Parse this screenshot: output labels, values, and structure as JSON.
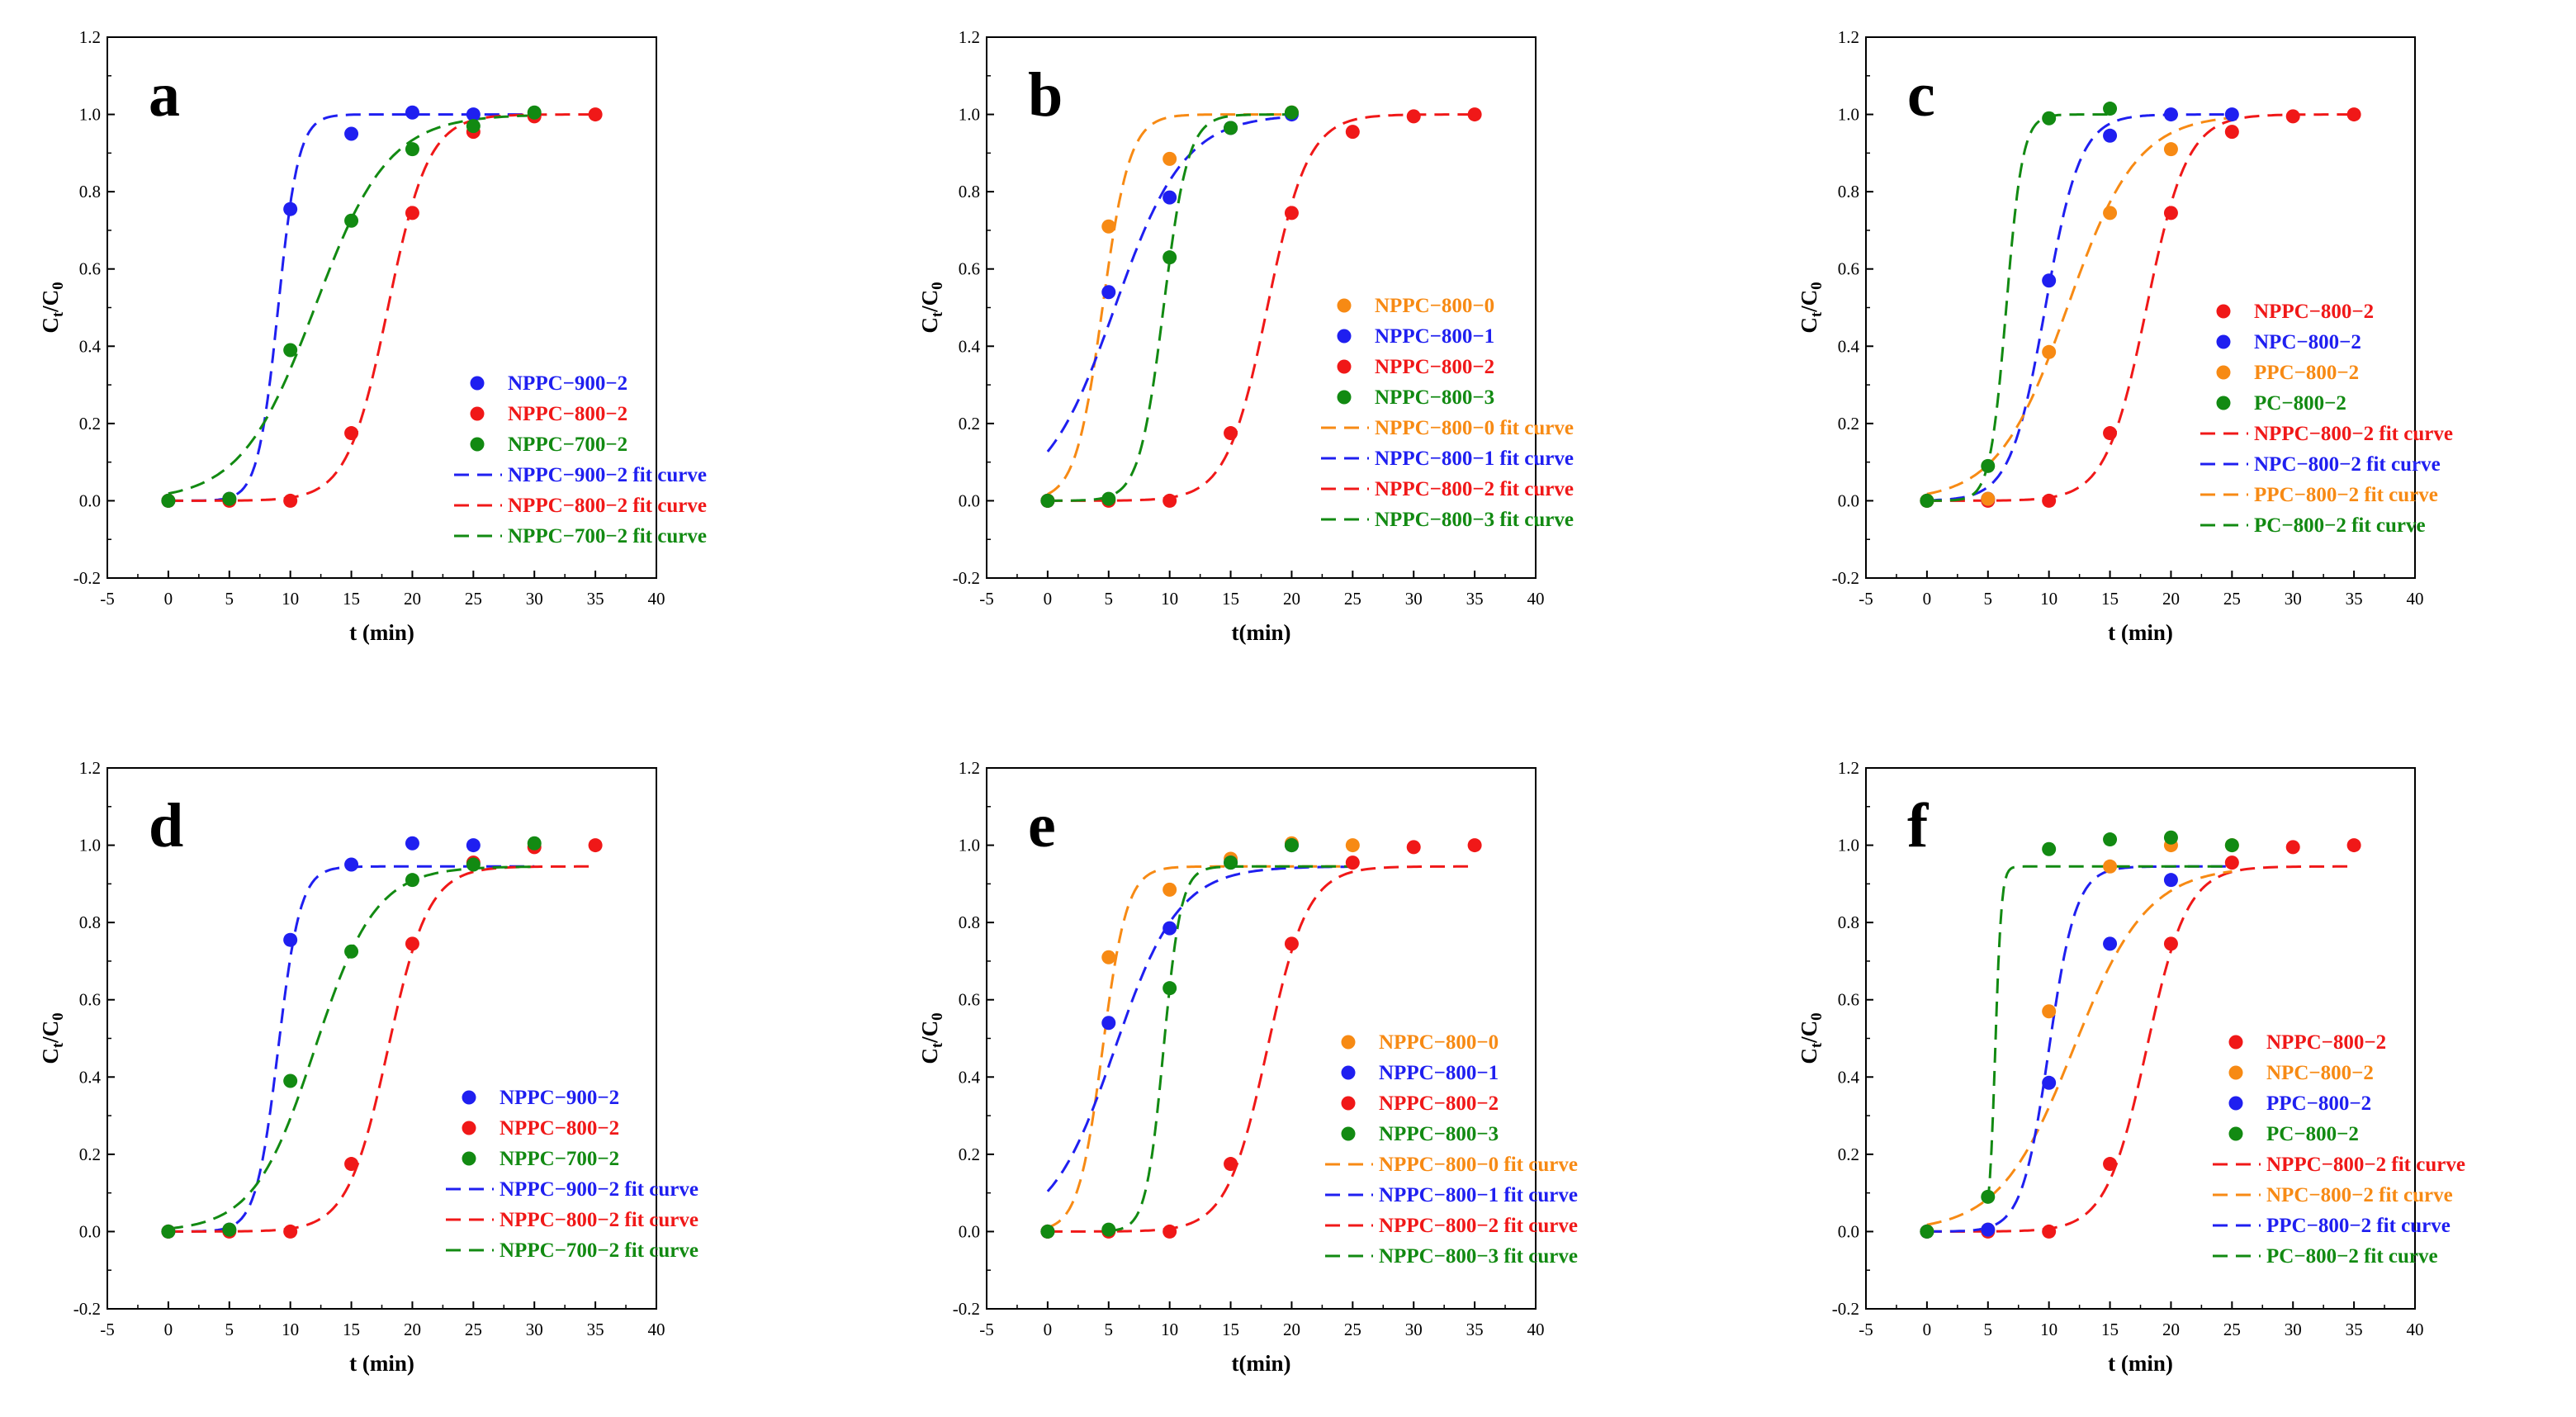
{
  "colors": {
    "blue": "#1f1ff0",
    "red": "#f01818",
    "green": "#128a12",
    "orange": "#f78a14"
  },
  "chart_data": [
    {
      "type": "scatter",
      "panel_label": "a",
      "xlabel": "t (min)",
      "ylabel_main": "C",
      "ylabel_sub1": "t",
      "ylabel_slash": "/C",
      "ylabel_sub2": "0",
      "xlim": [
        -5,
        40
      ],
      "ylim": [
        -0.2,
        1.2
      ],
      "xticks": [
        "-5",
        "0",
        "5",
        "10",
        "15",
        "20",
        "25",
        "30",
        "35",
        "40"
      ],
      "yticks": [
        "-0.2",
        "0.0",
        "0.2",
        "0.4",
        "0.6",
        "0.8",
        "1.0",
        "1.2"
      ],
      "series": [
        {
          "name": "NPPC−900−2",
          "color": "blue",
          "x": [
            0,
            5,
            10,
            15,
            20,
            25
          ],
          "y": [
            0.0,
            0.005,
            0.755,
            0.95,
            1.005,
            1.0
          ]
        },
        {
          "name": "NPPC−800−2",
          "color": "red",
          "x": [
            0,
            5,
            10,
            15,
            20,
            25,
            30,
            35
          ],
          "y": [
            0.0,
            0.0,
            0.0,
            0.175,
            0.745,
            0.955,
            0.995,
            1.0
          ]
        },
        {
          "name": "NPPC−700−2",
          "color": "green",
          "x": [
            0,
            5,
            10,
            15,
            20,
            25,
            30
          ],
          "y": [
            0.0,
            0.005,
            0.39,
            0.725,
            0.91,
            0.97,
            1.005
          ]
        }
      ],
      "fits": [
        {
          "name": "NPPC−900−2 fit curve",
          "color": "blue",
          "model": "logistic",
          "k": 1.2,
          "t0": 9.0,
          "max": 1.0,
          "x_start": 0,
          "x_end": 30
        },
        {
          "name": "NPPC−800−2 fit curve",
          "color": "red",
          "model": "logistic",
          "k": 0.6,
          "t0": 18.0,
          "max": 1.0,
          "x_start": 0,
          "x_end": 35
        },
        {
          "name": "NPPC−700−2 fit curve",
          "color": "green",
          "model": "logistic",
          "k": 0.33,
          "t0": 12.0,
          "max": 1.0,
          "x_start": 0,
          "x_end": 30
        }
      ]
    },
    {
      "type": "scatter",
      "panel_label": "b",
      "xlabel": "t(min)",
      "ylabel_main": "C",
      "ylabel_sub1": "t",
      "ylabel_slash": "/C",
      "ylabel_sub2": "0",
      "xlim": [
        -5,
        40
      ],
      "ylim": [
        -0.2,
        1.2
      ],
      "xticks": [
        "-5",
        "0",
        "5",
        "10",
        "15",
        "20",
        "25",
        "30",
        "35",
        "40"
      ],
      "yticks": [
        "-0.2",
        "0.0",
        "0.2",
        "0.4",
        "0.6",
        "0.8",
        "1.0",
        "1.2"
      ],
      "series": [
        {
          "name": "NPPC−800−0",
          "color": "orange",
          "x": [
            0,
            5,
            10,
            15,
            20
          ],
          "y": [
            0.0,
            0.71,
            0.885,
            0.965,
            1.005
          ]
        },
        {
          "name": "NPPC−800−1",
          "color": "blue",
          "x": [
            0,
            5,
            10,
            15,
            20
          ],
          "y": [
            0.0,
            0.54,
            0.785,
            0.965,
            1.0
          ]
        },
        {
          "name": "NPPC−800−2",
          "color": "red",
          "x": [
            0,
            5,
            10,
            15,
            20,
            25,
            30,
            35
          ],
          "y": [
            0.0,
            0.0,
            0.0,
            0.175,
            0.745,
            0.955,
            0.995,
            1.0
          ]
        },
        {
          "name": "NPPC−800−3",
          "color": "green",
          "x": [
            0,
            5,
            10,
            15,
            20
          ],
          "y": [
            0.0,
            0.005,
            0.63,
            0.965,
            1.005
          ]
        }
      ],
      "fits": [
        {
          "name": "NPPC−800−0 fit curve",
          "color": "orange",
          "model": "logistic",
          "k": 0.9,
          "t0": 4.5,
          "max": 1.0,
          "x_start": 0,
          "x_end": 20
        },
        {
          "name": "NPPC−800−1 fit curve",
          "color": "blue",
          "model": "logistic",
          "k": 0.35,
          "t0": 5.5,
          "max": 1.0,
          "x_start": 0,
          "x_end": 20
        },
        {
          "name": "NPPC−800−2 fit curve",
          "color": "red",
          "model": "logistic",
          "k": 0.6,
          "t0": 18.0,
          "max": 1.0,
          "x_start": 0,
          "x_end": 35
        },
        {
          "name": "NPPC−800−3 fit curve",
          "color": "green",
          "model": "logistic",
          "k": 1.0,
          "t0": 9.5,
          "max": 1.0,
          "x_start": 0,
          "x_end": 20
        }
      ]
    },
    {
      "type": "scatter",
      "panel_label": "c",
      "xlabel": "t (min)",
      "ylabel_main": "C",
      "ylabel_sub1": "t",
      "ylabel_slash": "/C",
      "ylabel_sub2": "0",
      "xlim": [
        -5,
        40
      ],
      "ylim": [
        -0.2,
        1.2
      ],
      "xticks": [
        "-5",
        "0",
        "5",
        "10",
        "15",
        "20",
        "25",
        "30",
        "35",
        "40"
      ],
      "yticks": [
        "-0.2",
        "0.0",
        "0.2",
        "0.4",
        "0.6",
        "0.8",
        "1.0",
        "1.2"
      ],
      "series": [
        {
          "name": "NPPC−800−2",
          "color": "red",
          "x": [
            0,
            5,
            10,
            15,
            20,
            25,
            30,
            35
          ],
          "y": [
            0.0,
            0.0,
            0.0,
            0.175,
            0.745,
            0.955,
            0.995,
            1.0
          ]
        },
        {
          "name": "NPC−800−2",
          "color": "blue",
          "x": [
            0,
            5,
            10,
            15,
            20,
            25
          ],
          "y": [
            0.0,
            0.005,
            0.57,
            0.945,
            1.0,
            1.0
          ]
        },
        {
          "name": "PPC−800−2",
          "color": "orange",
          "x": [
            0,
            5,
            10,
            15,
            20
          ],
          "y": [
            0.0,
            0.005,
            0.385,
            0.745,
            0.91
          ]
        },
        {
          "name": "PC−800−2",
          "color": "green",
          "x": [
            0,
            5,
            10,
            15
          ],
          "y": [
            0.0,
            0.09,
            0.99,
            1.015
          ]
        }
      ],
      "fits": [
        {
          "name": "NPPC−800−2 fit curve",
          "color": "red",
          "model": "logistic",
          "k": 0.6,
          "t0": 18.0,
          "max": 1.0,
          "x_start": 0,
          "x_end": 35
        },
        {
          "name": "NPC−800−2 fit curve",
          "color": "blue",
          "model": "logistic",
          "k": 0.7,
          "t0": 9.7,
          "max": 1.0,
          "x_start": 0,
          "x_end": 25
        },
        {
          "name": "PPC−800−2 fit curve",
          "color": "orange",
          "model": "logistic",
          "k": 0.35,
          "t0": 11.5,
          "max": 1.0,
          "x_start": 0,
          "x_end": 25
        },
        {
          "name": "PC−800−2 fit curve",
          "color": "green",
          "model": "logistic",
          "k": 1.5,
          "t0": 6.5,
          "max": 1.0,
          "x_start": 0,
          "x_end": 15
        }
      ]
    },
    {
      "type": "scatter",
      "panel_label": "d",
      "xlabel": "t (min)",
      "ylabel_main": "C",
      "ylabel_sub1": "t",
      "ylabel_slash": "/C",
      "ylabel_sub2": "0",
      "xlim": [
        -5,
        40
      ],
      "ylim": [
        -0.2,
        1.2
      ],
      "xticks": [
        "-5",
        "0",
        "5",
        "10",
        "15",
        "20",
        "25",
        "30",
        "35",
        "40"
      ],
      "yticks": [
        "-0.2",
        "0.0",
        "0.2",
        "0.4",
        "0.6",
        "0.8",
        "1.0",
        "1.2"
      ],
      "series": [
        {
          "name": "NPPC−900−2",
          "color": "blue",
          "x": [
            0,
            5,
            10,
            15,
            20,
            25
          ],
          "y": [
            0.0,
            0.005,
            0.755,
            0.95,
            1.005,
            1.0
          ]
        },
        {
          "name": "NPPC−800−2",
          "color": "red",
          "x": [
            0,
            5,
            10,
            15,
            20,
            25,
            30,
            35
          ],
          "y": [
            0.0,
            0.0,
            0.0,
            0.175,
            0.745,
            0.955,
            0.995,
            1.0
          ]
        },
        {
          "name": "NPPC−700−2",
          "color": "green",
          "x": [
            0,
            5,
            10,
            15,
            20,
            25,
            30
          ],
          "y": [
            0.0,
            0.005,
            0.39,
            0.725,
            0.91,
            0.95,
            1.005
          ]
        }
      ],
      "fits": [
        {
          "name": "NPPC−900−2 fit curve",
          "color": "blue",
          "model": "logistic",
          "k": 1.1,
          "t0": 9.0,
          "max": 0.945,
          "x_start": 0,
          "x_end": 30
        },
        {
          "name": "NPPC−800−2 fit curve",
          "color": "red",
          "model": "logistic",
          "k": 0.6,
          "t0": 18.0,
          "max": 0.945,
          "x_start": 0,
          "x_end": 35
        },
        {
          "name": "NPPC−700−2 fit curve",
          "color": "green",
          "model": "logistic",
          "k": 0.4,
          "t0": 12.0,
          "max": 0.945,
          "x_start": 0,
          "x_end": 30
        }
      ]
    },
    {
      "type": "scatter",
      "panel_label": "e",
      "xlabel": "t(min)",
      "ylabel_main": "C",
      "ylabel_sub1": "t",
      "ylabel_slash": "/C",
      "ylabel_sub2": "0",
      "xlim": [
        -5,
        40
      ],
      "ylim": [
        -0.2,
        1.2
      ],
      "xticks": [
        "-5",
        "0",
        "5",
        "10",
        "15",
        "20",
        "25",
        "30",
        "35",
        "40"
      ],
      "yticks": [
        "-0.2",
        "0.0",
        "0.2",
        "0.4",
        "0.6",
        "0.8",
        "1.0",
        "1.2"
      ],
      "series": [
        {
          "name": "NPPC−800−0",
          "color": "orange",
          "x": [
            0,
            5,
            10,
            15,
            20,
            25
          ],
          "y": [
            0.0,
            0.71,
            0.885,
            0.965,
            1.005,
            1.0
          ]
        },
        {
          "name": "NPPC−800−1",
          "color": "blue",
          "x": [
            0,
            5,
            10,
            15,
            20
          ],
          "y": [
            0.0,
            0.54,
            0.785,
            0.955,
            1.0
          ]
        },
        {
          "name": "NPPC−800−2",
          "color": "red",
          "x": [
            0,
            5,
            10,
            15,
            20,
            25,
            30,
            35
          ],
          "y": [
            0.0,
            0.0,
            0.0,
            0.175,
            0.745,
            0.955,
            0.995,
            1.0
          ]
        },
        {
          "name": "NPPC−800−3",
          "color": "green",
          "x": [
            0,
            5,
            10,
            15,
            20
          ],
          "y": [
            0.0,
            0.005,
            0.63,
            0.955,
            1.0
          ]
        }
      ],
      "fits": [
        {
          "name": "NPPC−800−0 fit curve",
          "color": "orange",
          "model": "logistic",
          "k": 1.0,
          "t0": 4.5,
          "max": 0.945,
          "x_start": 0,
          "x_end": 25
        },
        {
          "name": "NPPC−800−1 fit curve",
          "color": "blue",
          "model": "logistic",
          "k": 0.38,
          "t0": 5.5,
          "max": 0.945,
          "x_start": 0,
          "x_end": 25
        },
        {
          "name": "NPPC−800−2 fit curve",
          "color": "red",
          "model": "logistic",
          "k": 0.6,
          "t0": 18.0,
          "max": 0.945,
          "x_start": 0,
          "x_end": 35
        },
        {
          "name": "NPPC−800−3 fit curve",
          "color": "green",
          "model": "logistic",
          "k": 1.4,
          "t0": 9.5,
          "max": 0.945,
          "x_start": 5,
          "x_end": 25
        }
      ]
    },
    {
      "type": "scatter",
      "panel_label": "f",
      "xlabel": "t (min)",
      "ylabel_main": "C",
      "ylabel_sub1": "t",
      "ylabel_slash": "/C",
      "ylabel_sub2": "0",
      "xlim": [
        -5,
        40
      ],
      "ylim": [
        -0.2,
        1.2
      ],
      "xticks": [
        "-5",
        "0",
        "5",
        "10",
        "15",
        "20",
        "25",
        "30",
        "35",
        "40"
      ],
      "yticks": [
        "-0.2",
        "0.0",
        "0.2",
        "0.4",
        "0.6",
        "0.8",
        "1.0",
        "1.2"
      ],
      "series": [
        {
          "name": "NPPC−800−2",
          "color": "red",
          "x": [
            0,
            5,
            10,
            15,
            20,
            25,
            30,
            35
          ],
          "y": [
            0.0,
            0.0,
            0.0,
            0.175,
            0.745,
            0.955,
            0.995,
            1.0
          ]
        },
        {
          "name": "NPC−800−2",
          "color": "orange",
          "x": [
            0,
            5,
            10,
            15,
            20,
            25
          ],
          "y": [
            0.0,
            0.005,
            0.57,
            0.945,
            1.0,
            1.0
          ]
        },
        {
          "name": "PPC−800−2",
          "color": "blue",
          "x": [
            0,
            5,
            10,
            15,
            20
          ],
          "y": [
            0.0,
            0.005,
            0.385,
            0.745,
            0.91
          ]
        },
        {
          "name": "PC−800−2",
          "color": "green",
          "x": [
            0,
            5,
            10,
            15,
            20,
            25
          ],
          "y": [
            0.0,
            0.09,
            0.99,
            1.015,
            1.02,
            1.0
          ]
        }
      ],
      "fits": [
        {
          "name": "NPPC−800−2 fit curve",
          "color": "red",
          "model": "logistic",
          "k": 0.6,
          "t0": 18.0,
          "max": 0.945,
          "x_start": 0,
          "x_end": 35
        },
        {
          "name": "NPC−800−2 fit curve",
          "color": "orange",
          "model": "logistic",
          "k": 0.33,
          "t0": 12.0,
          "max": 0.945,
          "x_start": 0,
          "x_end": 25
        },
        {
          "name": "PPC−800−2 fit curve",
          "color": "blue",
          "model": "logistic",
          "k": 0.9,
          "t0": 10.0,
          "max": 0.945,
          "x_start": 0,
          "x_end": 25
        },
        {
          "name": "PC−800−2 fit curve",
          "color": "green",
          "model": "logistic",
          "k": 4.0,
          "t0": 5.6,
          "max": 0.945,
          "x_start": 5,
          "x_end": 25
        }
      ]
    }
  ]
}
